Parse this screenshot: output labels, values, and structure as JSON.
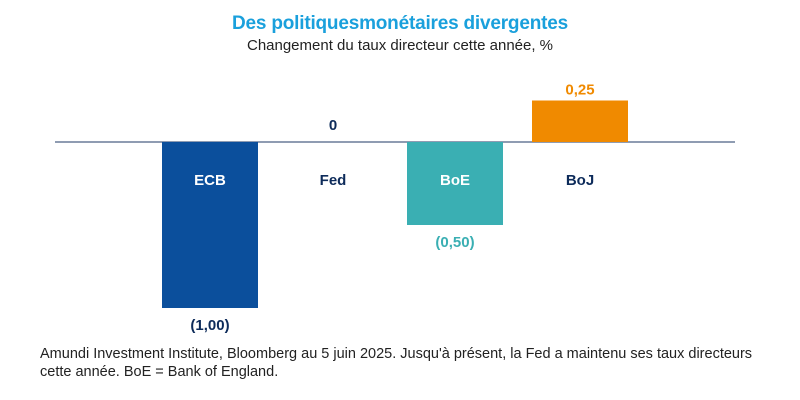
{
  "chart_data": {
    "type": "bar",
    "title": "Des politiquesmonétaires divergentes",
    "subtitle": "Changement du taux directeur cette année, %",
    "categories": [
      "ECB",
      "Fed",
      "BoE",
      "BoJ"
    ],
    "values": [
      -1.0,
      0,
      -0.5,
      0.25
    ],
    "value_labels": [
      "(1,00)",
      "0",
      "(0,50)",
      "0,25"
    ],
    "colors": [
      "#0b4f9c",
      "#0b4f9c",
      "#3aafb3",
      "#f08a00"
    ],
    "label_colors": [
      "#0d2b5a",
      "#0d2b5a",
      "#3aafb3",
      "#f08a00"
    ],
    "category_label_colors": [
      "#ffffff",
      "#0d2b5a",
      "#ffffff",
      "#0d2b5a"
    ],
    "xlabel": "",
    "ylabel": "",
    "grid": false,
    "legend": "none"
  },
  "footnote": "Amundi Investment Institute, Bloomberg au 5 juin 2025. Jusqu'à présent, la Fed a maintenu ses taux directeurs cette année. BoE = Bank of England."
}
